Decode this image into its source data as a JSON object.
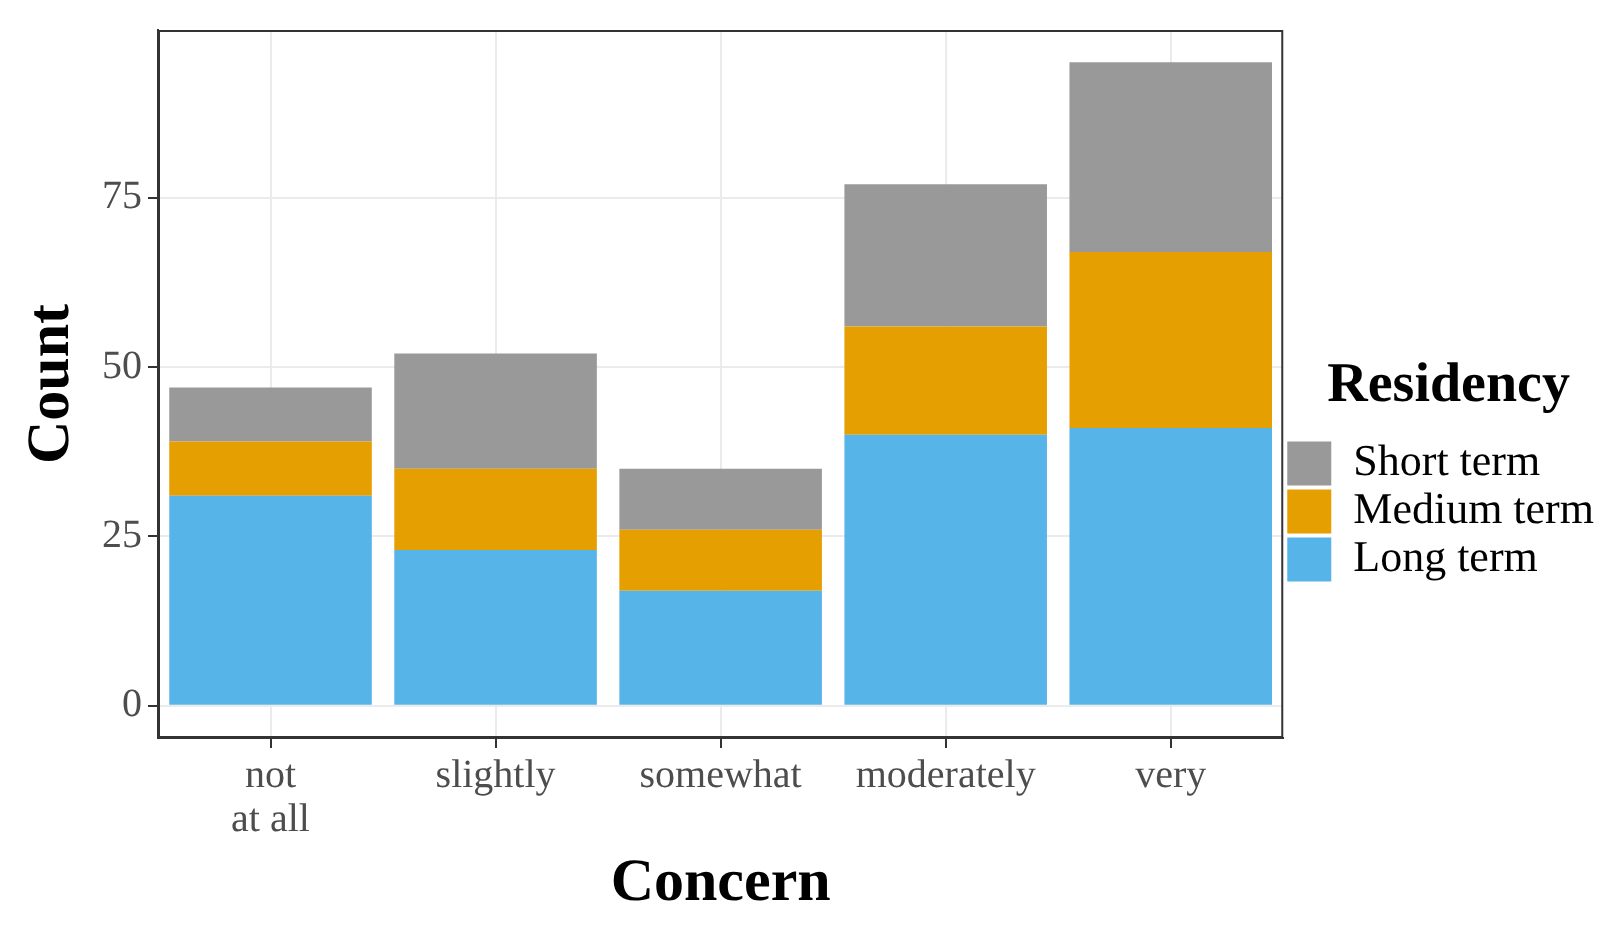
{
  "chart_data": {
    "type": "bar",
    "stacked": true,
    "xlabel": "Concern",
    "ylabel": "Count",
    "legend_title": "Residency",
    "legend": "right",
    "grid": true,
    "categories": [
      "not\nat all",
      "slightly",
      "somewhat",
      "moderately",
      "very"
    ],
    "ylim": [
      -4.75,
      99.75
    ],
    "yticks": [
      0,
      25,
      50,
      75
    ],
    "series": [
      {
        "name": "Long term",
        "color": "#56b4e9",
        "values": [
          31,
          23,
          17,
          40,
          41
        ]
      },
      {
        "name": "Medium term",
        "color": "#e69f00",
        "values": [
          8,
          12,
          9,
          16,
          26
        ]
      },
      {
        "name": "Short term",
        "color": "#999999",
        "values": [
          8,
          17,
          9,
          21,
          28
        ]
      }
    ]
  }
}
